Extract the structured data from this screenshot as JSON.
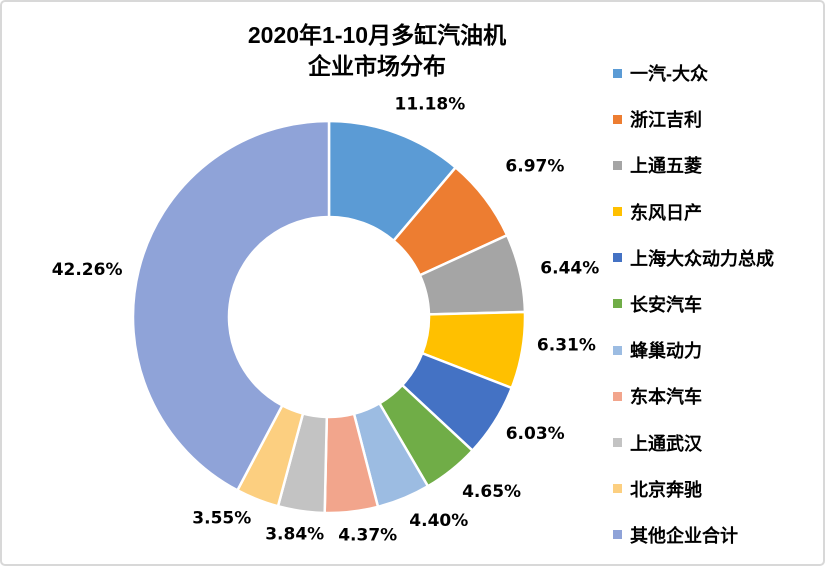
{
  "title": {
    "line1": "2020年1-10月多缸汽油机",
    "line2": "企业市场分布"
  },
  "chart_data": {
    "type": "pie",
    "subtype": "doughnut",
    "title": "2020年1-10月多缸汽油机企业市场分布",
    "unit": "%",
    "start_angle_deg": 0,
    "direction": "clockwise",
    "hole_ratio": 0.51,
    "legend_position": "right",
    "grid": false,
    "categories": [
      "一汽-大众",
      "浙江吉利",
      "上通五菱",
      "东风日产",
      "上海大众动力总成",
      "长安汽车",
      "蜂巢动力",
      "东本汽车",
      "上通武汉",
      "北京奔驰",
      "其他企业合计"
    ],
    "values": [
      11.18,
      6.97,
      6.44,
      6.31,
      6.03,
      4.65,
      4.4,
      4.37,
      3.84,
      3.55,
      42.26
    ],
    "labels": [
      "11.18%",
      "6.97%",
      "6.44%",
      "6.31%",
      "6.03%",
      "4.65%",
      "4.40%",
      "4.37%",
      "3.84%",
      "3.55%",
      "42.26%"
    ],
    "colors": [
      "#5B9BD5",
      "#ED7D31",
      "#A5A5A5",
      "#FFC000",
      "#4472C4",
      "#70AD47",
      "#9CBCE2",
      "#F2A58C",
      "#C3C3C3",
      "#FCCF80",
      "#8FA3D8"
    ],
    "slice_border_color": "#FFFFFF",
    "label_color": "#000000"
  }
}
